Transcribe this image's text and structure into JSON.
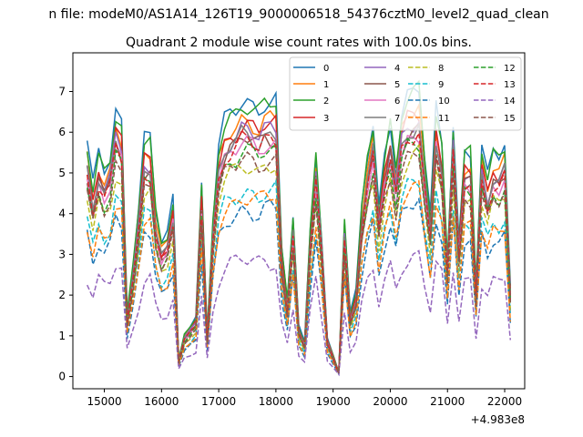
{
  "chart_data": {
    "type": "line",
    "suptitle": "n file: modeM0/AS1A14_126T19_9000006518_54376cztM0_level2_quad_clean",
    "title": "Quadrant 2 module wise count rates with 100.0s bins.",
    "xlabel": "",
    "ylabel": "",
    "x_offset_label": "+4.983e8",
    "xlim": [
      14450,
      22350
    ],
    "ylim": [
      -0.3,
      7.95
    ],
    "x_ticks": [
      15000,
      16000,
      17000,
      18000,
      19000,
      20000,
      21000,
      22000
    ],
    "x_tick_labels": [
      "15000",
      "16000",
      "17000",
      "18000",
      "19000",
      "20000",
      "21000",
      "22000"
    ],
    "y_ticks": [
      0,
      1,
      2,
      3,
      4,
      5,
      6,
      7
    ],
    "y_tick_labels": [
      "0",
      "1",
      "2",
      "3",
      "4",
      "5",
      "6",
      "7"
    ],
    "grid": false,
    "legend_placement": "top-right",
    "x_start": 14700,
    "x_step": 100,
    "base_profile": [
      5.5,
      4.5,
      5.3,
      4.9,
      5.2,
      6.3,
      6.0,
      1.5,
      2.6,
      4.0,
      5.6,
      5.6,
      3.9,
      3.2,
      3.4,
      4.2,
      0.4,
      1.0,
      1.2,
      1.4,
      4.5,
      1.0,
      3.7,
      5.4,
      6.0,
      6.2,
      6.3,
      6.5,
      6.5,
      6.4,
      6.3,
      6.5,
      6.5,
      6.5,
      3.0,
      1.8,
      3.8,
      1.2,
      0.8,
      3.5,
      5.3,
      3.3,
      0.9,
      0.5,
      0.1,
      3.7,
      1.5,
      2.0,
      4.0,
      5.2,
      6.0,
      4.0,
      5.2,
      6.0,
      4.9,
      6.2,
      6.6,
      6.7,
      6.8,
      5.2,
      3.8,
      6.3,
      5.5,
      2.8,
      6.0,
      3.2,
      5.3,
      5.3,
      2.2,
      5.4,
      4.7,
      5.3,
      5.2,
      5.5,
      2.1
    ],
    "series": [
      {
        "name": "0",
        "color": "#1f77b4",
        "dash": "solid",
        "scale": 1.04
      },
      {
        "name": "1",
        "color": "#ff7f0e",
        "dash": "solid",
        "scale": 0.97
      },
      {
        "name": "2",
        "color": "#2ca02c",
        "dash": "solid",
        "scale": 1.03
      },
      {
        "name": "3",
        "color": "#d62728",
        "dash": "solid",
        "scale": 0.95
      },
      {
        "name": "4",
        "color": "#9467bd",
        "dash": "solid",
        "scale": 0.93
      },
      {
        "name": "5",
        "color": "#8c564b",
        "dash": "solid",
        "scale": 0.9
      },
      {
        "name": "6",
        "color": "#e377c2",
        "dash": "solid",
        "scale": 0.88
      },
      {
        "name": "7",
        "color": "#7f7f7f",
        "dash": "solid",
        "scale": 0.91
      },
      {
        "name": "8",
        "color": "#bcbd22",
        "dash": "dashed",
        "scale": 0.8
      },
      {
        "name": "9",
        "color": "#17becf",
        "dash": "dashed",
        "scale": 0.7
      },
      {
        "name": "10",
        "color": "#1f77b4",
        "dash": "dashed",
        "scale": 0.63
      },
      {
        "name": "11",
        "color": "#ff7f0e",
        "dash": "dashed",
        "scale": 0.68
      },
      {
        "name": "12",
        "color": "#2ca02c",
        "dash": "dashed",
        "scale": 0.85
      },
      {
        "name": "13",
        "color": "#d62728",
        "dash": "dashed",
        "scale": 0.89
      },
      {
        "name": "14",
        "color": "#9467bd",
        "dash": "dashed",
        "scale": 0.44
      },
      {
        "name": "15",
        "color": "#8c564b",
        "dash": "dashed",
        "scale": 0.82
      }
    ]
  }
}
